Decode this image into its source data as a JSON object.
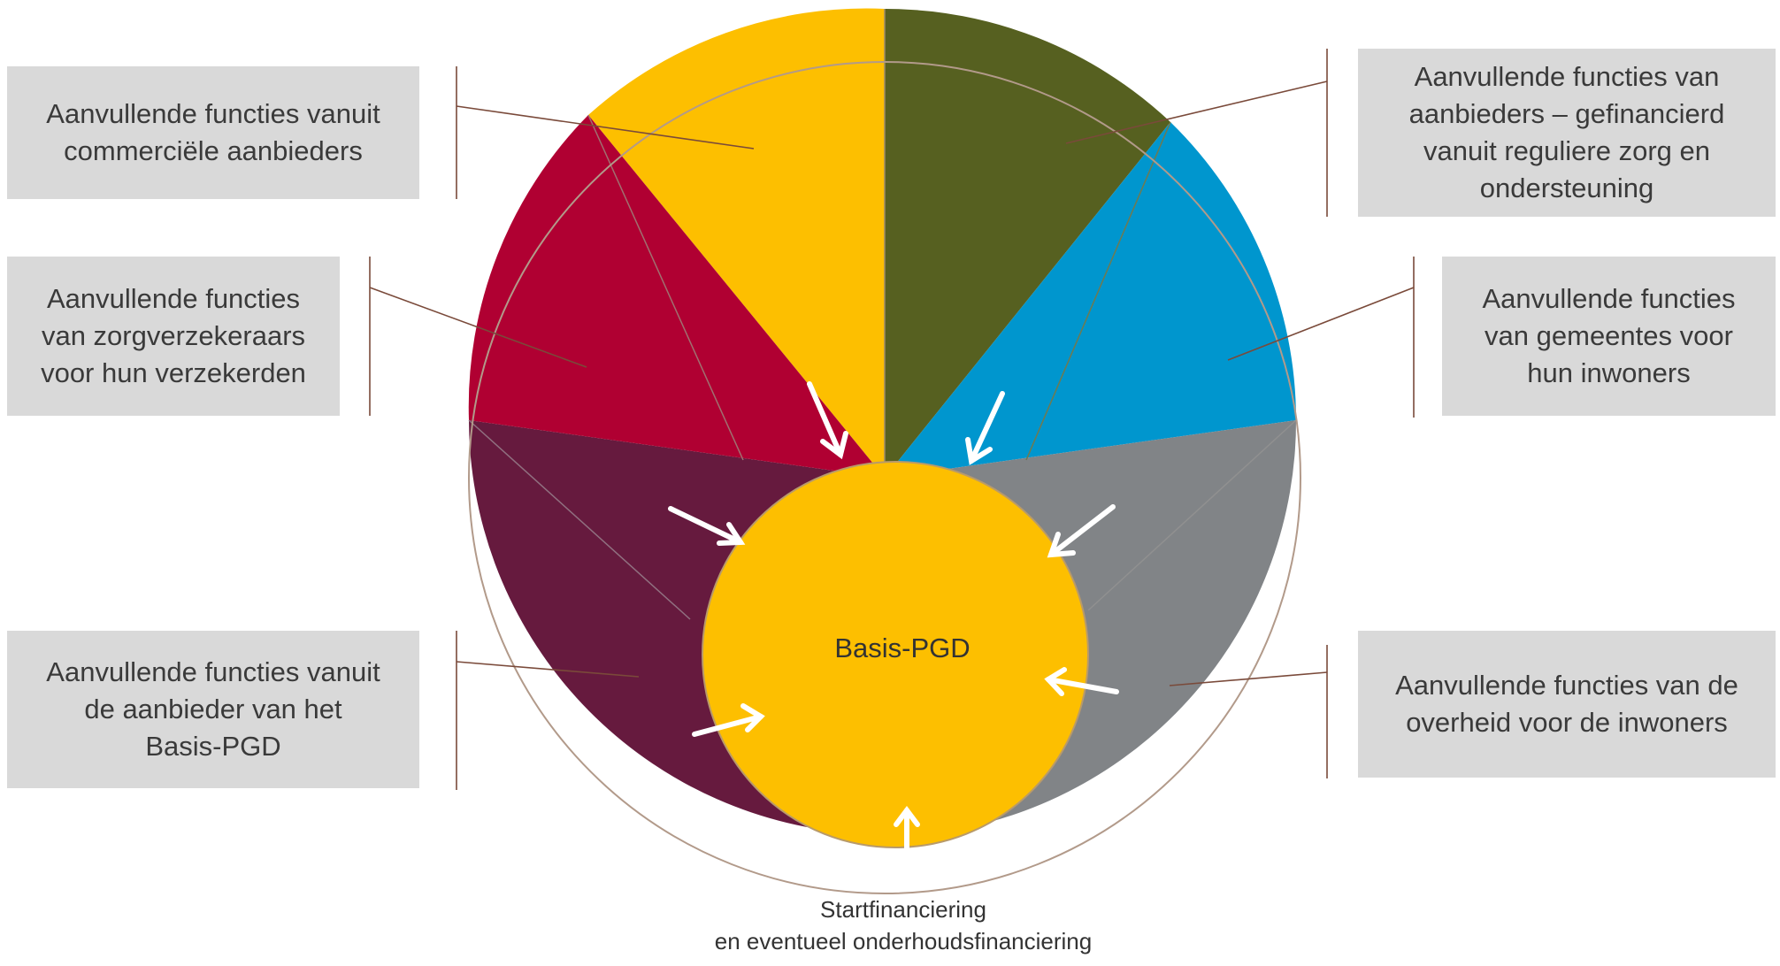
{
  "center": {
    "label": "Basis-PGD"
  },
  "labels": {
    "commercieel": "Aanvullende functies vanuit\ncommerciële aanbieders",
    "zorgverzekeraars": "Aanvullende functies\nvan zorgverzekeraars\nvoor hun verzekerden",
    "basis_aanbieder": "Aanvullende functies vanuit\nde aanbieder van het\nBasis-PGD",
    "regulier": "Aanvullende functies van\naanbieders – gefinancierd\nvanuit reguliere zorg en\nondersteuning",
    "gemeentes": "Aanvullende functies\nvan gemeentes voor\nhun inwoners",
    "overheid": "Aanvullende functies van de\noverheid voor de inwoners"
  },
  "caption": {
    "line1": "Startfinanciering",
    "line2": "en eventueel onderhoudsfinanciering"
  },
  "colors": {
    "yellow": "#fdbf00",
    "olive": "#566020",
    "blue": "#0096ce",
    "gray": "#818487",
    "crimson": "#b00032",
    "maroon": "#661a3e",
    "label_bg": "#d9d9d9",
    "connector": "#7a4a3a",
    "arrow": "#ffffff"
  }
}
